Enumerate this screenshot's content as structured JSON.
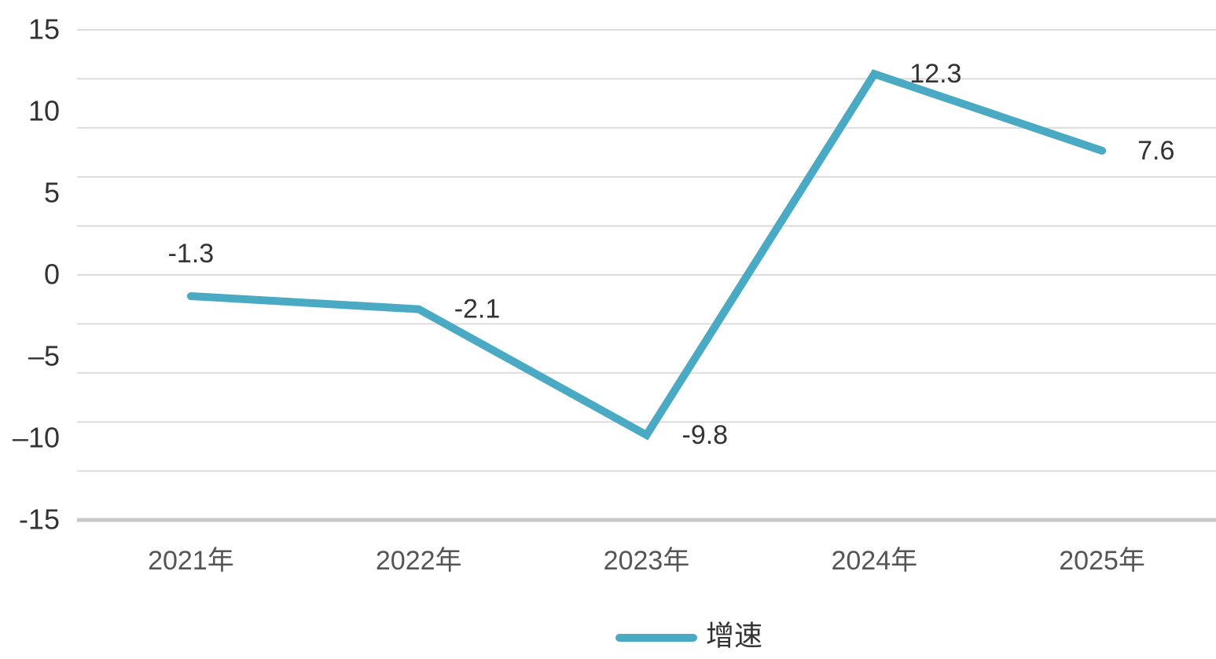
{
  "chart_data": {
    "type": "line",
    "categories": [
      "2021年",
      "2022年",
      "2023年",
      "2024年",
      "2025年"
    ],
    "series": [
      {
        "name": "增速",
        "color": "#4aaac4",
        "values": [
          -1.3,
          -2.1,
          -9.8,
          12.3,
          7.6
        ]
      }
    ],
    "ylim": [
      -15,
      15
    ],
    "yticks": [
      15,
      10,
      5,
      0,
      {
        "value": -5,
        "label": "–5"
      },
      {
        "value": -10,
        "label": "–10"
      },
      -15
    ],
    "ygrid": [
      15,
      12,
      9,
      6,
      3,
      0,
      -3,
      -6,
      -9,
      -12,
      -15
    ],
    "grid": true,
    "legend": "bottom"
  }
}
